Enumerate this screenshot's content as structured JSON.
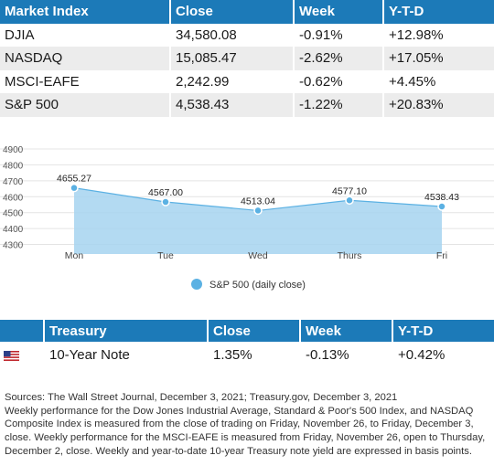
{
  "market_table": {
    "headers": [
      "Market Index",
      "Close",
      "Week",
      "Y-T-D"
    ],
    "rows": [
      {
        "name": "DJIA",
        "close": "34,580.08",
        "week": "-0.91%",
        "ytd": "+12.98%"
      },
      {
        "name": "NASDAQ",
        "close": "15,085.47",
        "week": "-2.62%",
        "ytd": "+17.05%"
      },
      {
        "name": "MSCI-EAFE",
        "close": "2,242.99",
        "week": "-0.62%",
        "ytd": "+4.45%"
      },
      {
        "name": "S&P 500",
        "close": "4,538.43",
        "week": "-1.22%",
        "ytd": "+20.83%"
      }
    ]
  },
  "chart_data": {
    "type": "area",
    "categories": [
      "Mon",
      "Tue",
      "Wed",
      "Thurs",
      "Fri"
    ],
    "series": [
      {
        "name": "S&P 500 (daily close)",
        "values": [
          4655.27,
          4567.0,
          4513.04,
          4577.1,
          4538.43
        ],
        "labels": [
          "4655.27",
          "4567.00",
          "4513.04",
          "4577.10",
          "4538.43"
        ]
      }
    ],
    "yticks": [
      4300,
      4400,
      4500,
      4600,
      4700,
      4800,
      4900
    ],
    "ylim": [
      4240,
      4900
    ],
    "grid": true,
    "legend_position": "bottom-center",
    "colors": {
      "fill": "#a6d3f0",
      "line": "#5bb1e3",
      "marker": "#5bb1e3",
      "grid": "#e4e4e4"
    }
  },
  "treasury_table": {
    "headers": [
      "",
      "Treasury",
      "Close",
      "Week",
      "Y-T-D"
    ],
    "row": {
      "flag_icon": "us-flag-icon",
      "name": "10-Year Note",
      "close": "1.35%",
      "week": "-0.13%",
      "ytd": "+0.42%"
    }
  },
  "notes": {
    "sources": "Sources: The Wall Street Journal, December 3, 2021; Treasury.gov, December 3, 2021",
    "detail": "Weekly performance for the Dow Jones Industrial Average, Standard & Poor's 500 Index, and NASDAQ Composite Index is measured from the close of trading on Friday, November 26, to Friday, December 3, close. Weekly performance for the MSCI-EAFE is measured from Friday, November 26, open to Thursday, December 2, close. Weekly and year-to-date 10-year Treasury note yield are expressed in basis points."
  },
  "colors": {
    "header_bg": "#1c7ab8",
    "row_alt": "#ececec"
  }
}
